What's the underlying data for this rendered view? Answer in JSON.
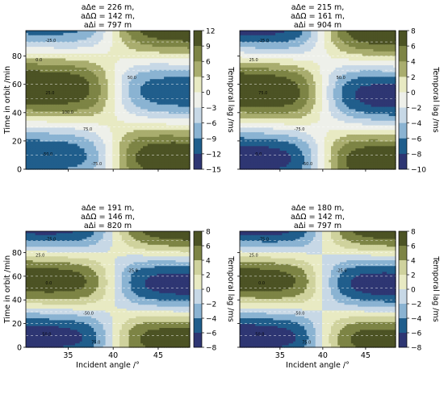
{
  "figure": {
    "shared_xlabel": "Incident angle /°",
    "shared_ylabel": "Time in orbit /min",
    "colorbar_label": "Temporal lag /ms"
  },
  "palette": [
    "#2e3673",
    "#205e8c",
    "#4a86b1",
    "#8ab3d2",
    "#c7d8e6",
    "#eef0ea",
    "#e8eac3",
    "#cfd29d",
    "#a9ad6e",
    "#7d8445",
    "#4c5324"
  ],
  "chart_data": [
    {
      "type": "heatmap",
      "title_lines": [
        "aΔe = 226 m,",
        "aΔΩ = 142 m,",
        "aΔi = 797 m"
      ],
      "x_range": [
        30.3,
        48.5
      ],
      "ylim": [
        0,
        98
      ],
      "x_ticks": [
        35,
        40,
        45
      ],
      "y_ticks": [
        0,
        20,
        40,
        60,
        80
      ],
      "xlabel": "",
      "ylabel": "Time in orbit /min",
      "colorbar": {
        "levels": [
          -15,
          -12,
          -9,
          -6,
          -3,
          0,
          3,
          6,
          9,
          12
        ],
        "ticks": [
          "12",
          "9",
          "6",
          "3",
          "0",
          "−3",
          "−6",
          "−9",
          "−12",
          "−15"
        ],
        "label": "Temporal lag /ms"
      },
      "field": {
        "amp": 12,
        "center": 40,
        "slope": 0.35,
        "tilt": 0.2,
        "bias": 0.4,
        "phase": 0
      },
      "grid": "dashed",
      "contour_labels": [
        "-25.0",
        "50.0",
        "25.0",
        "0.0",
        "-50.0",
        "-75.0",
        "75.0",
        "100.0"
      ]
    },
    {
      "type": "heatmap",
      "title_lines": [
        "aΔe = 215 m,",
        "aΔΩ = 161 m,",
        "aΔi = 904 m"
      ],
      "x_range": [
        30.3,
        48.5
      ],
      "ylim": [
        0,
        98
      ],
      "x_ticks": [
        35,
        40,
        45
      ],
      "y_ticks": [
        0,
        20,
        40,
        60,
        80
      ],
      "xlabel": "",
      "ylabel": "",
      "colorbar": {
        "levels": [
          -10,
          -8,
          -6,
          -4,
          -2,
          0,
          2,
          4,
          6,
          8
        ],
        "ticks": [
          "8",
          "6",
          "4",
          "2",
          "0",
          "−2",
          "−4",
          "−6",
          "−8",
          "−10"
        ],
        "label": "Temporal lag /ms"
      },
      "field": {
        "amp": 9,
        "center": 40,
        "slope": 0.33,
        "tilt": 0.25,
        "bias": -0.4,
        "phase": 2
      },
      "grid": "dashed",
      "contour_labels": [
        "-25.0",
        "50.0",
        "75.0",
        "25.0",
        "0.0",
        "-50.0",
        "-75.0"
      ]
    },
    {
      "type": "heatmap",
      "title_lines": [
        "aΔe = 191 m,",
        "aΔΩ = 146 m,",
        "aΔi = 820 m"
      ],
      "x_range": [
        30.3,
        48.5
      ],
      "ylim": [
        0,
        98
      ],
      "x_ticks": [
        35,
        40,
        45
      ],
      "y_ticks": [
        0,
        20,
        40,
        60,
        80
      ],
      "xlabel": "Incident angle /°",
      "ylabel": "Time in orbit /min",
      "colorbar": {
        "levels": [
          -8,
          -6,
          -4,
          -2,
          0,
          2,
          4,
          6,
          8
        ],
        "ticks": [
          "8",
          "6",
          "4",
          "2",
          "0",
          "−2",
          "−4",
          "−6",
          "−8"
        ],
        "label": "Temporal lag /ms"
      },
      "field": {
        "amp": 7.5,
        "center": 40,
        "slope": 0.34,
        "tilt": 0.22,
        "bias": 0.2,
        "phase": 1
      },
      "grid": "dashed",
      "contour_labels": [
        "-75.0",
        "-25.0",
        "0.0",
        "25.0",
        "50.0",
        "75.0",
        "-50.0"
      ]
    },
    {
      "type": "heatmap",
      "title_lines": [
        "aΔe = 180 m,",
        "aΔΩ = 142 m,",
        "aΔi = 797 m"
      ],
      "x_range": [
        30.3,
        48.5
      ],
      "ylim": [
        0,
        98
      ],
      "x_ticks": [
        35,
        40,
        45
      ],
      "y_ticks": [
        0,
        20,
        40,
        60,
        80
      ],
      "xlabel": "Incident angle /°",
      "ylabel": "",
      "colorbar": {
        "levels": [
          -8,
          -6,
          -4,
          -2,
          0,
          2,
          4,
          6,
          8
        ],
        "ticks": [
          "8",
          "6",
          "4",
          "2",
          "0",
          "−2",
          "−4",
          "−6",
          "−8"
        ],
        "label": "Temporal lag /ms"
      },
      "field": {
        "amp": 7.5,
        "center": 40,
        "slope": 0.34,
        "tilt": 0.22,
        "bias": 0.0,
        "phase": 1
      },
      "grid": "dashed",
      "contour_labels": [
        "-75.0",
        "-25.0",
        "0.0",
        "25.0",
        "50.0",
        "75.0",
        "-50.0"
      ]
    }
  ]
}
